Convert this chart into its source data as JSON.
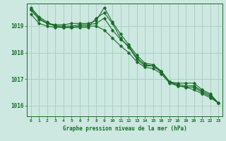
{
  "title": "Graphe pression niveau de la mer (hPa)",
  "background_color": "#cce8e0",
  "plot_bg_color": "#cce8e0",
  "grid_color": "#aaccbb",
  "line_color": "#1a6b2a",
  "x_ticks": [
    0,
    1,
    2,
    3,
    4,
    5,
    6,
    7,
    8,
    9,
    10,
    11,
    12,
    13,
    14,
    15,
    16,
    17,
    18,
    19,
    20,
    21,
    22,
    23
  ],
  "ylim": [
    1015.6,
    1019.85
  ],
  "yticks": [
    1016,
    1017,
    1018,
    1019
  ],
  "series": [
    [
      1019.65,
      1019.3,
      1019.1,
      1019.05,
      1019.05,
      1019.1,
      1019.1,
      1019.1,
      1019.2,
      1019.7,
      1019.15,
      1018.7,
      1018.3,
      1017.9,
      1017.6,
      1017.55,
      1017.3,
      1016.9,
      1016.85,
      1016.85,
      1016.85,
      1016.6,
      1016.45,
      1016.1
    ],
    [
      1019.6,
      1019.25,
      1019.1,
      1019.0,
      1019.0,
      1019.0,
      1019.05,
      1019.05,
      1019.1,
      1019.3,
      1018.85,
      1018.5,
      1018.25,
      1017.8,
      1017.55,
      1017.5,
      1017.3,
      1016.9,
      1016.8,
      1016.75,
      1016.75,
      1016.55,
      1016.4,
      1016.1
    ],
    [
      1019.45,
      1019.1,
      1019.0,
      1018.95,
      1018.95,
      1018.95,
      1019.0,
      1019.0,
      1019.0,
      1018.85,
      1018.55,
      1018.25,
      1018.0,
      1017.65,
      1017.45,
      1017.4,
      1017.2,
      1016.85,
      1016.75,
      1016.7,
      1016.7,
      1016.5,
      1016.35,
      1016.1
    ],
    [
      1019.7,
      1019.35,
      1019.15,
      1019.0,
      1018.95,
      1018.95,
      1018.95,
      1018.95,
      1019.3,
      1019.5,
      1019.1,
      1018.55,
      1018.2,
      1017.75,
      1017.5,
      1017.5,
      1017.25,
      1016.9,
      1016.75,
      1016.7,
      1016.6,
      1016.45,
      1016.3,
      1016.1
    ]
  ]
}
